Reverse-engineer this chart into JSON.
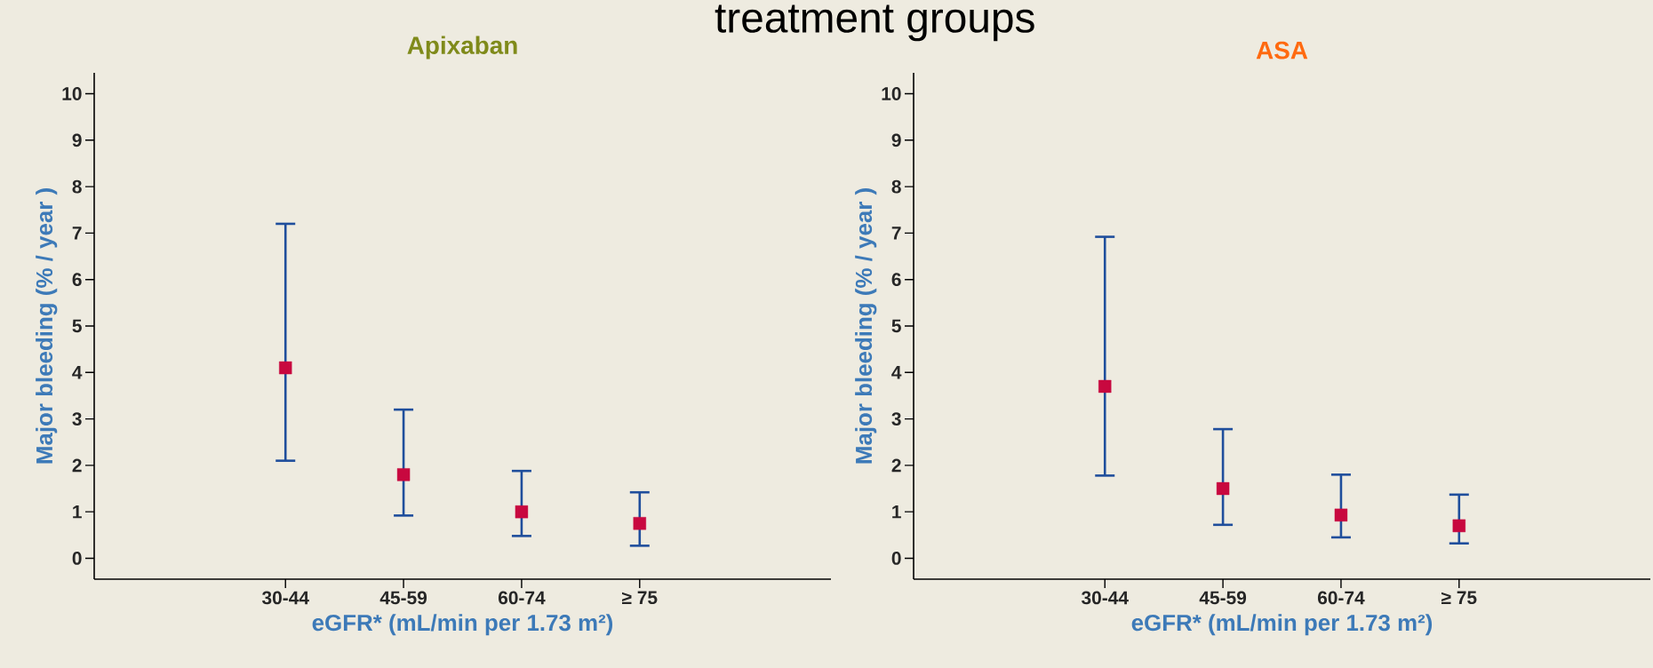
{
  "chart_data": [
    {
      "type": "scatter",
      "title": "Apixaban",
      "annotations": [
        "treatment groups"
      ],
      "xlabel": "eGFR* (mL/min per 1.73 m²)",
      "ylabel": "Major bleeding (% / year )",
      "categories": [
        "30-44",
        "45-59",
        "60-74",
        "≥ 75"
      ],
      "values": [
        4.1,
        1.8,
        1.0,
        0.75
      ],
      "errors": [
        [
          2.1,
          7.2
        ],
        [
          0.92,
          3.2
        ],
        [
          0.48,
          1.88
        ],
        [
          0.27,
          1.42
        ]
      ],
      "color": "#c8083f",
      "marker": "square",
      "grid": false,
      "ylim": [
        -0.45,
        10.45
      ],
      "yticks": [
        0,
        1,
        2,
        3,
        4,
        5,
        6,
        7,
        8,
        9,
        10
      ]
    },
    {
      "type": "scatter",
      "title": "ASA",
      "xlabel": "eGFR* (mL/min per 1.73 m²)",
      "ylabel": "Major bleeding (% / year )",
      "categories": [
        "30-44",
        "45-59",
        "60-74",
        "≥ 75"
      ],
      "values": [
        3.7,
        1.5,
        0.93,
        0.7
      ],
      "errors": [
        [
          1.78,
          6.92
        ],
        [
          0.72,
          2.78
        ],
        [
          0.45,
          1.8
        ],
        [
          0.32,
          1.37
        ]
      ],
      "color": "#c8083f",
      "marker": "square",
      "grid": false,
      "ylim": [
        -0.45,
        10.45
      ],
      "yticks": [
        0,
        1,
        2,
        3,
        4,
        5,
        6,
        7,
        8,
        9,
        10
      ]
    }
  ]
}
